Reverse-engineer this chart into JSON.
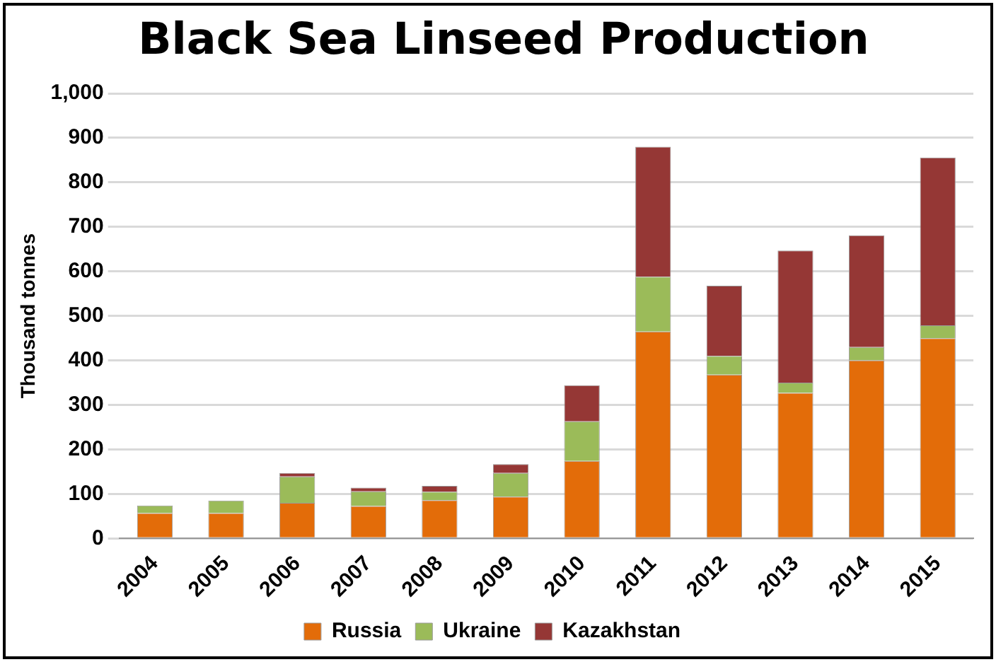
{
  "chart_data": {
    "type": "bar",
    "title": "Black Sea Linseed Production",
    "ylabel": "Thousand tonnes",
    "categories": [
      "2004",
      "2005",
      "2006",
      "2007",
      "2008",
      "2009",
      "2010",
      "2011",
      "2012",
      "2013",
      "2014",
      "2015"
    ],
    "series": [
      {
        "name": "Russia",
        "color": "#e36c09",
        "values": [
          57,
          57,
          80,
          73,
          86,
          94,
          174,
          465,
          368,
          327,
          400,
          450
        ]
      },
      {
        "name": "Ukraine",
        "color": "#9bbb59",
        "values": [
          17,
          28,
          59,
          33,
          19,
          53,
          89,
          123,
          42,
          23,
          30,
          29
        ]
      },
      {
        "name": "Kazakhstan",
        "color": "#953735",
        "values": [
          0,
          null,
          8,
          8,
          13,
          20,
          81,
          292,
          158,
          297,
          251,
          377
        ]
      }
    ],
    "stacked": true,
    "ylim": [
      0,
      1000
    ],
    "yticks": [
      0,
      100,
      200,
      300,
      400,
      500,
      600,
      700,
      800,
      900,
      {
        "value": 1000,
        "label": "1,000"
      }
    ],
    "grid": "y",
    "legend": "bottom"
  }
}
